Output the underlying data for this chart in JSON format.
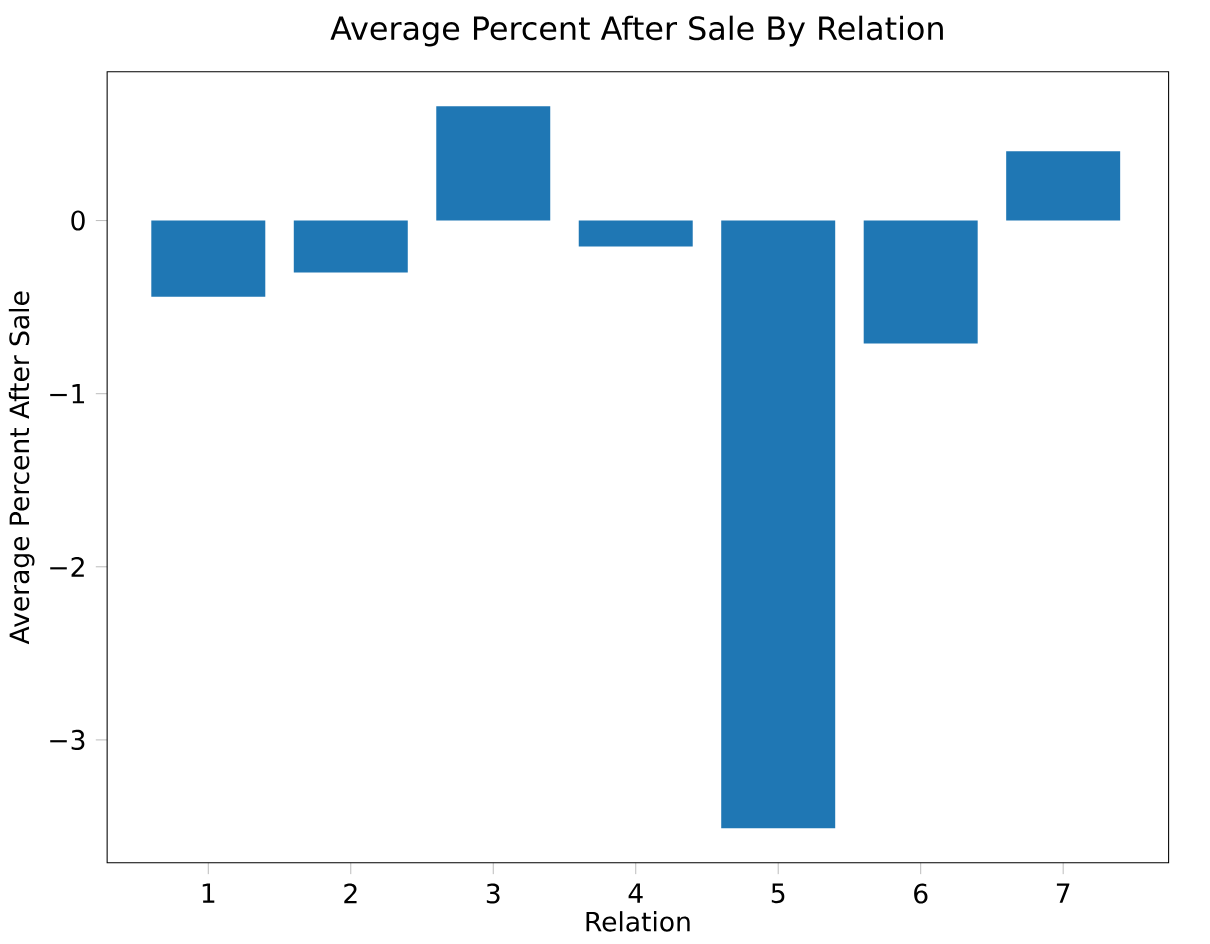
{
  "chart_data": {
    "type": "bar",
    "title": "Average Percent After Sale By Relation",
    "xlabel": "Relation",
    "ylabel": "Average Percent After Sale",
    "x": [
      1,
      2,
      3,
      4,
      5,
      6,
      7
    ],
    "values": [
      -0.44,
      -0.3,
      0.66,
      -0.15,
      -3.51,
      -0.71,
      0.4
    ],
    "color": "#1f77b4",
    "xlim": [
      0.29,
      7.74
    ],
    "ylim": [
      -3.71,
      0.86
    ],
    "xticks": [
      1,
      2,
      3,
      4,
      5,
      6,
      7
    ],
    "yticks": [
      {
        "value": -3,
        "label": "−3"
      },
      {
        "value": -2,
        "label": "−2"
      },
      {
        "value": -1,
        "label": "−1"
      },
      0
    ],
    "grid": false
  }
}
